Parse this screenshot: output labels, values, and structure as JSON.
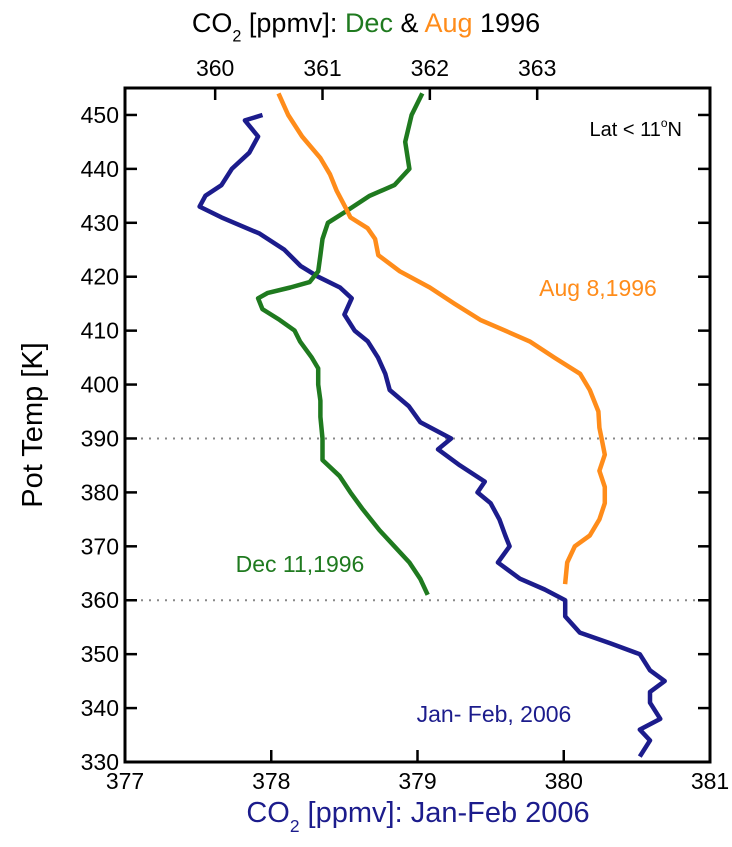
{
  "chart_data": {
    "type": "line",
    "top_label": [
      {
        "text": "CO"
      },
      {
        "text": "2",
        "sub": true
      },
      {
        "text": " [ppmv]: "
      },
      {
        "text": "Dec",
        "color": "#1f7a1f"
      },
      {
        "text": " & "
      },
      {
        "text": "Aug",
        "color": "#ff8c1a"
      },
      {
        "text": " 1996"
      }
    ],
    "bottom_label": [
      {
        "text": "CO",
        "color": "#1c1c8c"
      },
      {
        "text": "2",
        "sub": true,
        "color": "#1c1c8c"
      },
      {
        "text": " [ppmv]: Jan-Feb 2006",
        "color": "#1c1c8c"
      }
    ],
    "ylabel": "Pot Temp [K]",
    "annotation": [
      {
        "text": "Lat < 11"
      },
      {
        "text": "o",
        "sup": true
      },
      {
        "text": "N"
      }
    ],
    "ylim": [
      330,
      455
    ],
    "yticks": [
      330,
      340,
      350,
      360,
      370,
      380,
      390,
      400,
      410,
      420,
      430,
      440,
      450
    ],
    "xlim": [
      377,
      381
    ],
    "xticks": [
      377,
      378,
      379,
      380,
      381
    ],
    "x2lim": [
      359.16,
      364.61
    ],
    "x2ticks": [
      360,
      361,
      362,
      363
    ],
    "hlines": [
      390,
      360
    ],
    "series": [
      {
        "name": "Jan- Feb, 2006",
        "color": "#1c1c8c",
        "axis": "x",
        "x": [
          377.94,
          377.82,
          377.91,
          377.85,
          377.73,
          377.66,
          377.55,
          377.51,
          377.66,
          377.92,
          378.09,
          378.2,
          378.32,
          378.47,
          378.55,
          378.5,
          378.57,
          378.66,
          378.73,
          378.78,
          378.81,
          378.94,
          379.02,
          379.23,
          379.14,
          379.29,
          379.46,
          379.41,
          379.5,
          379.56,
          379.6,
          379.63,
          379.55,
          379.7,
          379.87,
          380.01,
          380.01,
          380.11,
          380.32,
          380.52,
          380.59,
          380.69,
          380.59,
          380.59,
          380.66,
          380.52,
          380.59,
          380.52
        ],
        "y": [
          450,
          449,
          446,
          443,
          440,
          437,
          435,
          433,
          431,
          428,
          425,
          422,
          420,
          418,
          416,
          413,
          410,
          408,
          405,
          402,
          399,
          396,
          393,
          390,
          388,
          385,
          382,
          380,
          378,
          375,
          372,
          370,
          367,
          364,
          362,
          360,
          357,
          354,
          352,
          350,
          347,
          345,
          343,
          341,
          338,
          336,
          334,
          331
        ]
      },
      {
        "name": "Dec 11,1996",
        "color": "#1f7a1f",
        "axis": "x2",
        "x": [
          361.93,
          361.83,
          361.77,
          361.81,
          361.67,
          361.44,
          361.21,
          361.05,
          361.0,
          360.98,
          360.96,
          360.88,
          360.7,
          360.49,
          360.4,
          360.44,
          360.6,
          360.74,
          360.79,
          360.9,
          360.96,
          360.96,
          360.98,
          360.98,
          361.0,
          361.0,
          361.16,
          361.26,
          361.37,
          361.53,
          361.67,
          361.81,
          361.91,
          361.98
        ],
        "y": [
          454,
          450,
          445,
          440,
          437,
          435,
          432,
          430,
          427,
          424,
          421,
          419,
          418,
          417,
          416,
          414,
          412,
          410,
          408,
          405,
          403,
          400,
          397,
          394,
          390,
          386,
          383,
          380,
          377,
          373,
          370,
          367,
          364,
          361
        ]
      },
      {
        "name": "Aug 8,1996",
        "color": "#ff8c1a",
        "axis": "x2",
        "x": [
          360.59,
          360.68,
          360.81,
          360.98,
          361.07,
          361.13,
          361.21,
          361.26,
          361.42,
          361.49,
          361.52,
          361.72,
          362.0,
          362.23,
          362.47,
          362.7,
          362.93,
          363.16,
          363.4,
          363.49,
          363.57,
          363.58,
          363.6,
          363.63,
          363.58,
          363.63,
          363.63,
          363.58,
          363.49,
          363.35,
          363.28,
          363.26
        ],
        "y": [
          454,
          450,
          446,
          442,
          439,
          436,
          433,
          431,
          429,
          427,
          424,
          421,
          418,
          415,
          412,
          410,
          408,
          405,
          402,
          399,
          395,
          392,
          390,
          387,
          384,
          381,
          378,
          375,
          372,
          370,
          367,
          363
        ]
      }
    ]
  }
}
